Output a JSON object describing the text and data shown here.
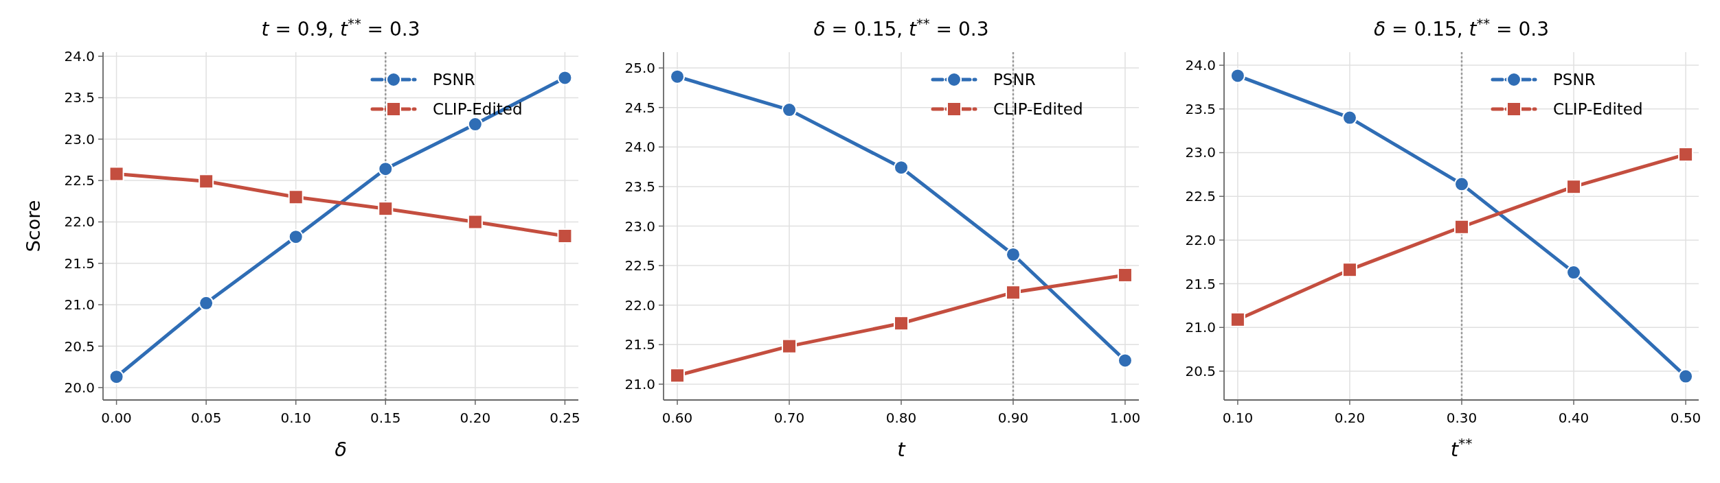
{
  "chart_data": [
    {
      "type": "line",
      "title": "t = 0.9, t$^{**}$ = 0.3",
      "xlabel": "δ",
      "ylabel": "Score",
      "x": [
        0,
        0.05,
        0.1,
        0.15,
        0.2,
        0.25
      ],
      "series": [
        {
          "name": "PSNR",
          "color": "#2f6db5",
          "marker": "circle",
          "values": [
            20.13,
            21.02,
            21.82,
            22.64,
            23.18,
            23.74
          ]
        },
        {
          "name": "CLIP-Edited",
          "color": "#c44e3f",
          "marker": "square",
          "values": [
            22.58,
            22.49,
            22.3,
            22.16,
            22.0,
            21.83
          ]
        }
      ],
      "xlim": [
        -0.0075,
        0.2575
      ],
      "xticks": [
        {
          "value": 0,
          "label": "0.00"
        },
        0.05,
        {
          "value": 0.1,
          "label": "0.10"
        },
        0.15,
        {
          "value": 0.2,
          "label": "0.20"
        },
        0.25
      ],
      "ylim": [
        19.85,
        24.05
      ],
      "yticks": [
        {
          "value": 20,
          "label": "20.0"
        },
        20.5,
        {
          "value": 21,
          "label": "21.0"
        },
        21.5,
        {
          "value": 22,
          "label": "22.0"
        },
        22.5,
        {
          "value": 23,
          "label": "23.0"
        },
        23.5,
        {
          "value": 24,
          "label": "24.0"
        }
      ],
      "ref_lines": [
        {
          "axis": "x",
          "value": 0.15,
          "color": "#999999",
          "line_style": "dotted"
        }
      ],
      "grid": true,
      "legend": "top right",
      "line_style": "solid"
    },
    {
      "type": "line",
      "title": "δ = 0.15, t$^{**}$ = 0.3",
      "xlabel": "t",
      "x": [
        0.6,
        0.7,
        0.8,
        0.9,
        1.0
      ],
      "series": [
        {
          "name": "PSNR",
          "color": "#2f6db5",
          "marker": "circle",
          "values": [
            24.89,
            24.47,
            23.74,
            22.64,
            21.3
          ]
        },
        {
          "name": "CLIP-Edited",
          "color": "#c44e3f",
          "marker": "square",
          "values": [
            21.11,
            21.48,
            21.77,
            22.16,
            22.38
          ]
        }
      ],
      "xlim": [
        0.5877,
        1.0123
      ],
      "xticks": [
        {
          "value": 0.6,
          "label": "0.60"
        },
        {
          "value": 0.7,
          "label": "0.70"
        },
        {
          "value": 0.8,
          "label": "0.80"
        },
        {
          "value": 0.9,
          "label": "0.90"
        },
        {
          "value": 1.0,
          "label": "1.00"
        }
      ],
      "ylim": [
        20.8,
        25.2
      ],
      "yticks": [
        {
          "value": 21,
          "label": "21.0"
        },
        21.5,
        {
          "value": 22,
          "label": "22.0"
        },
        22.5,
        {
          "value": 23,
          "label": "23.0"
        },
        23.5,
        {
          "value": 24,
          "label": "24.0"
        },
        24.5,
        {
          "value": 25,
          "label": "25.0"
        }
      ],
      "ref_lines": [
        {
          "axis": "x",
          "value": 0.9,
          "color": "#999999",
          "line_style": "dotted"
        }
      ],
      "grid": true,
      "legend": "top right",
      "line_style": "solid"
    },
    {
      "type": "line",
      "title": "δ = 0.15, t$^{**}$ = 0.3",
      "xlabel": "t$^{**}$",
      "x": [
        0.1,
        0.2,
        0.3,
        0.4,
        0.5
      ],
      "series": [
        {
          "name": "PSNR",
          "color": "#2f6db5",
          "marker": "circle",
          "values": [
            23.88,
            23.4,
            22.64,
            21.63,
            20.44
          ]
        },
        {
          "name": "CLIP-Edited",
          "color": "#c44e3f",
          "marker": "square",
          "values": [
            21.09,
            21.66,
            22.15,
            22.61,
            22.98
          ]
        }
      ],
      "xlim": [
        0.0878,
        0.5116
      ],
      "xticks": [
        {
          "value": 0.1,
          "label": "0.10"
        },
        {
          "value": 0.2,
          "label": "0.20"
        },
        {
          "value": 0.3,
          "label": "0.30"
        },
        {
          "value": 0.4,
          "label": "0.40"
        },
        {
          "value": 0.5,
          "label": "0.50"
        }
      ],
      "ylim": [
        20.17,
        24.15
      ],
      "yticks": [
        20.5,
        {
          "value": 21,
          "label": "21.0"
        },
        21.5,
        {
          "value": 22,
          "label": "22.0"
        },
        22.5,
        {
          "value": 23,
          "label": "23.0"
        },
        23.5,
        {
          "value": 24,
          "label": "24.0"
        }
      ],
      "ref_lines": [
        {
          "axis": "x",
          "value": 0.3,
          "color": "#999999",
          "line_style": "dotted"
        }
      ],
      "grid": true,
      "legend": "top right",
      "line_style": "solid"
    }
  ]
}
